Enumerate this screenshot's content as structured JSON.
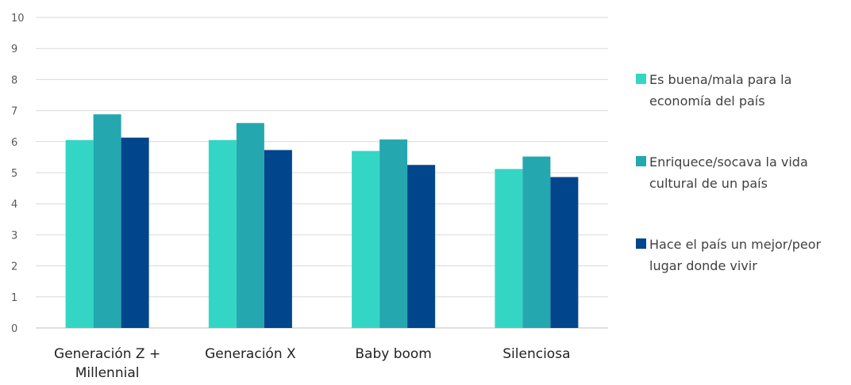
{
  "chart_data": {
    "type": "bar",
    "title": "",
    "xlabel": "",
    "ylabel": "",
    "ylim": [
      0,
      10
    ],
    "yticks": [
      0,
      1,
      2,
      3,
      4,
      5,
      6,
      7,
      8,
      9,
      10
    ],
    "grid": true,
    "legend_position": "right",
    "categories": [
      "Generación Z + Millennial",
      "Generación X",
      "Baby boom",
      "Silenciosa"
    ],
    "series": [
      {
        "name": "Es buena/mala para la economía del país",
        "color": "#33D6C5",
        "values": [
          6.05,
          6.05,
          5.7,
          5.12
        ]
      },
      {
        "name": "Enriquece/socava la vida cultural de un país",
        "color": "#24A7AE",
        "values": [
          6.88,
          6.6,
          6.07,
          5.52
        ]
      },
      {
        "name": "Hace el país un mejor/peor lugar donde vivir",
        "color": "#01468C",
        "values": [
          6.13,
          5.73,
          5.25,
          4.86
        ]
      }
    ]
  }
}
